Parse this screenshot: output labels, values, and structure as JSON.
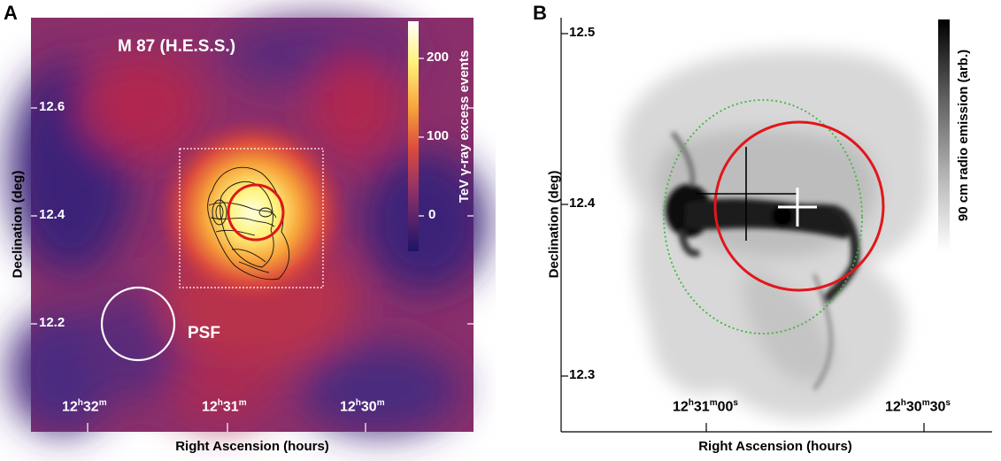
{
  "panel_a": {
    "label": "A",
    "title": "M 87 (H.E.S.S.)",
    "colorbar_label": "TeV γ-ray excess events",
    "colorbar_ticks": [
      "200",
      "100",
      "0"
    ],
    "dec_ticks": [
      "12.6",
      "12.4",
      "12.2"
    ],
    "ra_ticks": [
      {
        "h": "12",
        "m": "32"
      },
      {
        "h": "12",
        "m": "31"
      },
      {
        "h": "12",
        "m": "30"
      }
    ],
    "psf_label": "PSF",
    "xlabel": "Right Ascension (hours)",
    "ylabel": "Declination (deg)",
    "colors": {
      "map_low": "#2d1a6e",
      "map_mid": "#b0284f",
      "map_high": "#fff27a",
      "circle": "#e2161b"
    }
  },
  "panel_b": {
    "label": "B",
    "colorbar_label": "90 cm radio emission (arb.)",
    "dec_ticks": [
      "12.5",
      "12.4",
      "12.3"
    ],
    "ra_ticks": [
      {
        "h": "12",
        "m": "31",
        "s": "00"
      },
      {
        "h": "12",
        "m": "30",
        "s": "30"
      }
    ],
    "xlabel": "Right Ascension (hours)",
    "ylabel": "Declination (deg)",
    "colors": {
      "circle": "#e2161b",
      "dotted_circle": "#3cb83c"
    }
  }
}
